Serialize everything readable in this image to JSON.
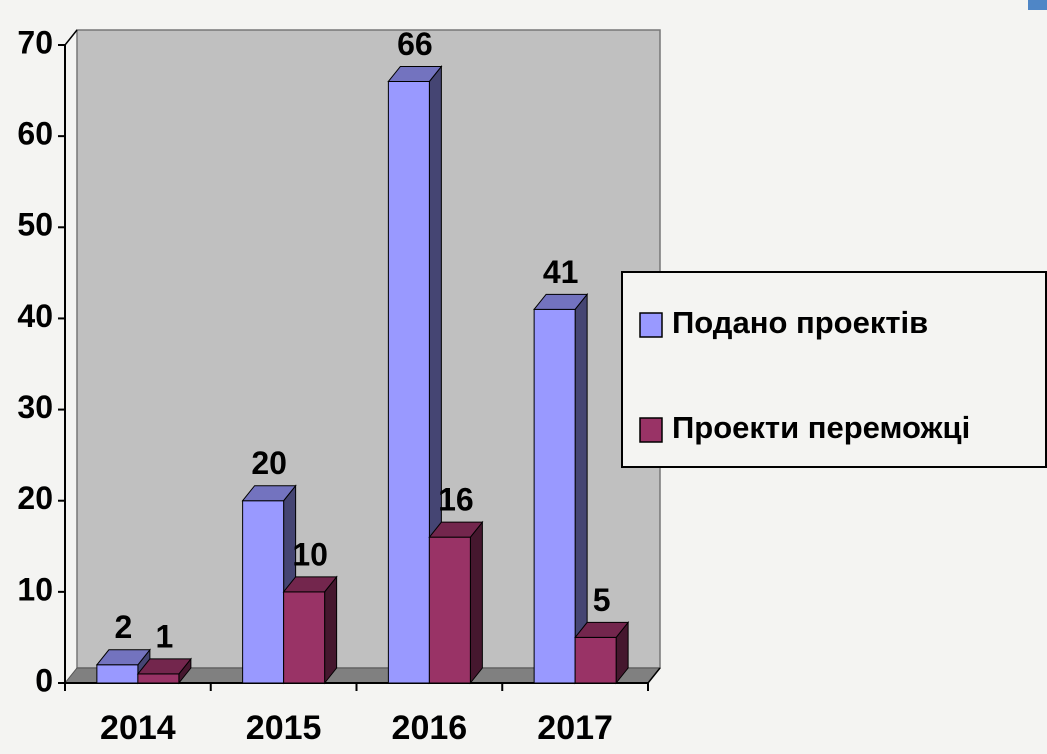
{
  "chart_data": {
    "type": "bar3d",
    "categories": [
      "2014",
      "2015",
      "2016",
      "2017"
    ],
    "series": [
      {
        "name": "Подано проектів",
        "color": "#9999ff",
        "values": [
          2,
          20,
          66,
          41
        ]
      },
      {
        "name": "Проекти переможці",
        "color": "#993366",
        "values": [
          1,
          10,
          16,
          5
        ]
      }
    ],
    "ylim": [
      0,
      70
    ],
    "yticks": [
      0,
      10,
      20,
      30,
      40,
      50,
      60,
      70
    ],
    "grid": false,
    "legend": "right"
  }
}
